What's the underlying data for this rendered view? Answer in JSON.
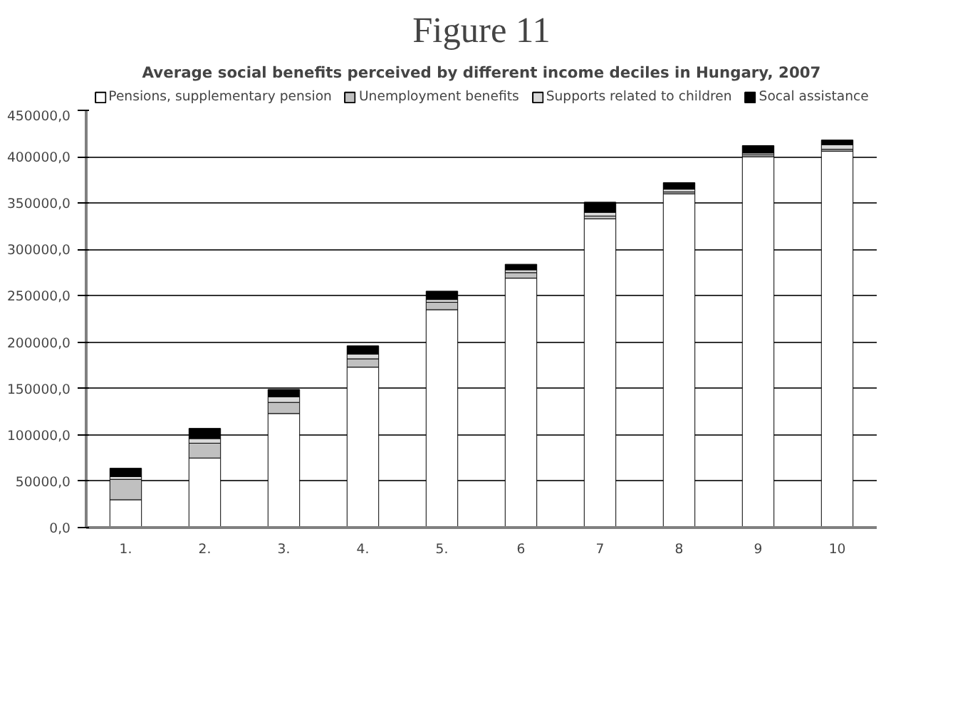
{
  "chart_data": {
    "type": "bar",
    "stacked": true,
    "title": "Figure 11",
    "subtitle": "Average social benefits perceived by different income deciles in Hungary, 2007",
    "categories": [
      "1.",
      "2.",
      "3.",
      "4.",
      "5.",
      "6",
      "7",
      "8",
      "9",
      "10"
    ],
    "series": [
      {
        "name": "Pensions, supplementary pension",
        "color": "#ffffff",
        "values": [
          30000,
          75000,
          123000,
          173000,
          235000,
          269000,
          333000,
          360000,
          400000,
          406000
        ]
      },
      {
        "name": "Unemployment benefits",
        "color": "#c0c0c0",
        "values": [
          22000,
          16000,
          12000,
          9000,
          8000,
          6000,
          3000,
          2000,
          2000,
          2000
        ]
      },
      {
        "name": "Supports related to children",
        "color": "#d9d9d9",
        "values": [
          3000,
          5000,
          6000,
          5000,
          3000,
          3000,
          4000,
          3000,
          2000,
          5000
        ]
      },
      {
        "name": "Socal assistance",
        "color": "#000000",
        "values": [
          9000,
          11000,
          8000,
          9000,
          9000,
          6000,
          11000,
          7000,
          8000,
          5000
        ]
      }
    ],
    "ylim": [
      0,
      450000
    ],
    "yticks": [
      {
        "value": 0,
        "label": "0,0"
      },
      {
        "value": 50000,
        "label": "50000,0"
      },
      {
        "value": 100000,
        "label": "100000,0"
      },
      {
        "value": 150000,
        "label": "150000,0"
      },
      {
        "value": 200000,
        "label": "200000,0"
      },
      {
        "value": 250000,
        "label": "250000,0"
      },
      {
        "value": 300000,
        "label": "300000,0"
      },
      {
        "value": 350000,
        "label": "350000,0"
      },
      {
        "value": 400000,
        "label": "400000,0"
      },
      {
        "value": 450000,
        "label": "450000,0"
      }
    ],
    "grid": "y",
    "legend": "top"
  }
}
